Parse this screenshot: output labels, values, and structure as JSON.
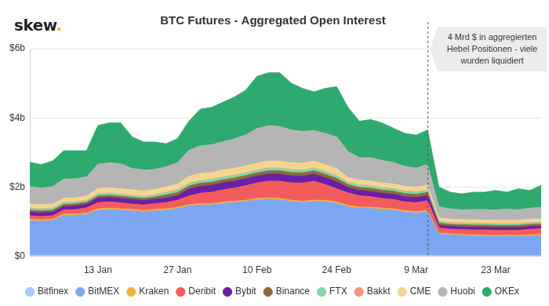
{
  "logo": "skew.",
  "chart_data": {
    "type": "area",
    "title": "BTC Futures - Aggregated Open Interest",
    "stacked": true,
    "grid": true,
    "legend": "bottom",
    "categories": [
      null,
      null,
      null,
      null,
      null,
      null,
      "13 Jan",
      null,
      null,
      null,
      null,
      null,
      null,
      "27 Jan",
      null,
      null,
      null,
      null,
      null,
      null,
      "10 Feb",
      null,
      null,
      null,
      null,
      null,
      null,
      "24 Feb",
      null,
      null,
      null,
      null,
      null,
      null,
      "9 Mar",
      null,
      null,
      null,
      null,
      null,
      null,
      "23 Mar",
      null,
      null,
      null,
      null
    ],
    "ylim": [
      0,
      6
    ],
    "yticks": [
      {
        "value": 0,
        "label": "$0"
      },
      {
        "value": 2,
        "label": "$2b"
      },
      {
        "value": 4,
        "label": "$4b"
      },
      {
        "value": 6,
        "label": "$6b"
      }
    ],
    "annotation": {
      "text": [
        "4 Mrd $ in aggregierten",
        "Hebel Positionen - viele",
        "wurden liquidiert"
      ],
      "x": 35,
      "line_style": "dashed"
    },
    "series": [
      {
        "name": "Bitfinex",
        "color": "#a8c8f5",
        "values": [
          0.03,
          0.03,
          0.03,
          0.03,
          0.03,
          0.03,
          0.03,
          0.03,
          0.03,
          0.03,
          0.03,
          0.03,
          0.03,
          0.03,
          0.03,
          0.03,
          0.03,
          0.03,
          0.03,
          0.03,
          0.03,
          0.03,
          0.03,
          0.03,
          0.03,
          0.03,
          0.03,
          0.03,
          0.03,
          0.03,
          0.03,
          0.03,
          0.03,
          0.03,
          0.03,
          0.03,
          0.02,
          0.02,
          0.02,
          0.02,
          0.02,
          0.02,
          0.02,
          0.02,
          0.02,
          0.02
        ]
      },
      {
        "name": "BitMEX",
        "color": "#7da6f2",
        "values": [
          1.0,
          0.98,
          1.0,
          1.15,
          1.15,
          1.18,
          1.3,
          1.32,
          1.3,
          1.28,
          1.25,
          1.28,
          1.3,
          1.35,
          1.42,
          1.45,
          1.45,
          1.5,
          1.52,
          1.55,
          1.6,
          1.62,
          1.6,
          1.55,
          1.52,
          1.55,
          1.55,
          1.5,
          1.4,
          1.35,
          1.35,
          1.32,
          1.3,
          1.25,
          1.22,
          1.25,
          0.62,
          0.6,
          0.58,
          0.57,
          0.56,
          0.55,
          0.56,
          0.55,
          0.57,
          0.58
        ]
      },
      {
        "name": "Kraken",
        "color": "#f2b134",
        "values": [
          0.04,
          0.04,
          0.04,
          0.04,
          0.04,
          0.04,
          0.04,
          0.04,
          0.04,
          0.04,
          0.04,
          0.04,
          0.04,
          0.04,
          0.04,
          0.04,
          0.04,
          0.04,
          0.04,
          0.04,
          0.04,
          0.04,
          0.04,
          0.04,
          0.04,
          0.04,
          0.04,
          0.04,
          0.04,
          0.04,
          0.04,
          0.04,
          0.04,
          0.04,
          0.04,
          0.04,
          0.03,
          0.03,
          0.03,
          0.03,
          0.03,
          0.03,
          0.03,
          0.03,
          0.03,
          0.03
        ]
      },
      {
        "name": "Deribit",
        "color": "#f25c5c",
        "values": [
          0.1,
          0.1,
          0.1,
          0.12,
          0.13,
          0.15,
          0.18,
          0.18,
          0.17,
          0.16,
          0.16,
          0.17,
          0.18,
          0.2,
          0.25,
          0.3,
          0.33,
          0.35,
          0.38,
          0.42,
          0.45,
          0.48,
          0.5,
          0.5,
          0.52,
          0.55,
          0.45,
          0.38,
          0.36,
          0.33,
          0.3,
          0.28,
          0.27,
          0.25,
          0.26,
          0.28,
          0.15,
          0.13,
          0.14,
          0.14,
          0.15,
          0.15,
          0.14,
          0.15,
          0.16,
          0.16
        ]
      },
      {
        "name": "Bybit",
        "color": "#6a1fa8",
        "values": [
          0.1,
          0.1,
          0.1,
          0.1,
          0.1,
          0.1,
          0.13,
          0.13,
          0.13,
          0.13,
          0.13,
          0.13,
          0.13,
          0.13,
          0.2,
          0.2,
          0.2,
          0.2,
          0.2,
          0.2,
          0.2,
          0.2,
          0.2,
          0.2,
          0.2,
          0.2,
          0.2,
          0.2,
          0.15,
          0.15,
          0.15,
          0.15,
          0.15,
          0.15,
          0.15,
          0.15,
          0.08,
          0.08,
          0.08,
          0.08,
          0.08,
          0.08,
          0.08,
          0.08,
          0.08,
          0.08
        ]
      },
      {
        "name": "Binance",
        "color": "#8c6a3c",
        "values": [
          0.06,
          0.06,
          0.06,
          0.06,
          0.06,
          0.06,
          0.06,
          0.06,
          0.06,
          0.06,
          0.06,
          0.06,
          0.09,
          0.09,
          0.09,
          0.09,
          0.09,
          0.09,
          0.09,
          0.09,
          0.09,
          0.1,
          0.1,
          0.1,
          0.1,
          0.1,
          0.1,
          0.1,
          0.09,
          0.09,
          0.09,
          0.09,
          0.09,
          0.09,
          0.09,
          0.09,
          0.06,
          0.06,
          0.06,
          0.06,
          0.06,
          0.06,
          0.06,
          0.06,
          0.06,
          0.06
        ]
      },
      {
        "name": "FTX",
        "color": "#80d9ab",
        "values": [
          0.05,
          0.05,
          0.05,
          0.05,
          0.05,
          0.05,
          0.05,
          0.05,
          0.05,
          0.05,
          0.05,
          0.05,
          0.07,
          0.07,
          0.07,
          0.07,
          0.07,
          0.07,
          0.07,
          0.07,
          0.07,
          0.07,
          0.07,
          0.07,
          0.07,
          0.07,
          0.07,
          0.07,
          0.06,
          0.06,
          0.06,
          0.06,
          0.06,
          0.06,
          0.06,
          0.06,
          0.04,
          0.04,
          0.04,
          0.04,
          0.04,
          0.04,
          0.04,
          0.04,
          0.04,
          0.04
        ]
      },
      {
        "name": "Bakkt",
        "color": "#f2967c",
        "values": [
          0.01,
          0.01,
          0.01,
          0.01,
          0.01,
          0.01,
          0.01,
          0.01,
          0.01,
          0.01,
          0.01,
          0.01,
          0.01,
          0.01,
          0.01,
          0.01,
          0.01,
          0.01,
          0.01,
          0.01,
          0.01,
          0.01,
          0.01,
          0.01,
          0.01,
          0.01,
          0.01,
          0.01,
          0.01,
          0.01,
          0.01,
          0.01,
          0.01,
          0.01,
          0.01,
          0.01,
          0.01,
          0.01,
          0.01,
          0.01,
          0.01,
          0.01,
          0.01,
          0.01,
          0.01,
          0.01
        ]
      },
      {
        "name": "CME",
        "color": "#f5d590",
        "values": [
          0.12,
          0.12,
          0.12,
          0.12,
          0.12,
          0.12,
          0.16,
          0.16,
          0.16,
          0.16,
          0.16,
          0.16,
          0.16,
          0.16,
          0.2,
          0.2,
          0.2,
          0.2,
          0.2,
          0.2,
          0.2,
          0.2,
          0.2,
          0.2,
          0.2,
          0.2,
          0.2,
          0.2,
          0.14,
          0.14,
          0.14,
          0.14,
          0.14,
          0.14,
          0.14,
          0.14,
          0.1,
          0.1,
          0.1,
          0.1,
          0.1,
          0.1,
          0.1,
          0.1,
          0.1,
          0.1
        ]
      },
      {
        "name": "Huobi",
        "color": "#b5b5b5",
        "values": [
          0.5,
          0.48,
          0.5,
          0.55,
          0.55,
          0.55,
          0.7,
          0.72,
          0.72,
          0.62,
          0.6,
          0.58,
          0.58,
          0.62,
          0.75,
          0.8,
          0.8,
          0.82,
          0.85,
          0.9,
          1.0,
          1.02,
          1.0,
          0.95,
          0.92,
          0.88,
          0.9,
          0.92,
          0.75,
          0.65,
          0.68,
          0.65,
          0.62,
          0.58,
          0.55,
          0.6,
          0.32,
          0.3,
          0.28,
          0.3,
          0.3,
          0.3,
          0.32,
          0.3,
          0.32,
          0.33
        ]
      },
      {
        "name": "OKEx",
        "color": "#2eaa6e",
        "values": [
          0.7,
          0.68,
          0.74,
          0.82,
          0.81,
          0.76,
          1.12,
          1.15,
          1.18,
          0.91,
          0.81,
          0.79,
          0.66,
          0.7,
          0.84,
          1.06,
          1.08,
          1.14,
          1.21,
          1.29,
          1.51,
          1.53,
          1.55,
          1.35,
          1.24,
          1.12,
          1.3,
          1.45,
          1.27,
          1.05,
          1.1,
          1.08,
          0.99,
          0.95,
          0.95,
          1.0,
          0.57,
          0.48,
          0.46,
          0.5,
          0.5,
          0.56,
          0.49,
          0.61,
          0.51,
          0.64
        ]
      }
    ]
  }
}
